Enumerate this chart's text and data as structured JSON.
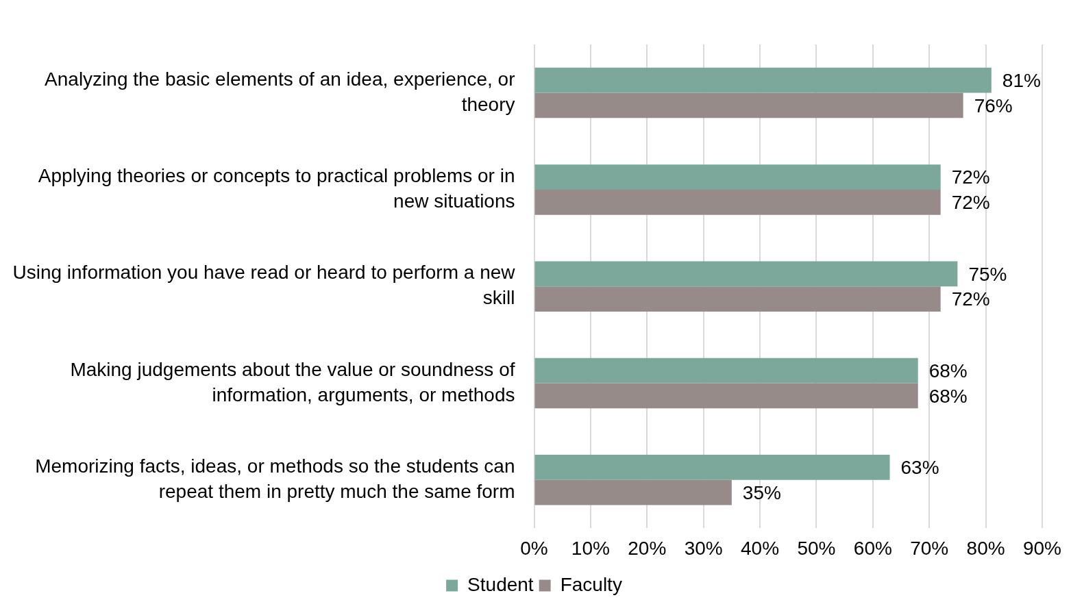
{
  "chart_data": {
    "type": "bar",
    "orientation": "horizontal",
    "categories": [
      "Analyzing the basic elements of an idea, experience, or theory",
      "Applying theories or concepts to practical problems or in new situations",
      "Using information you have read or heard to perform a new skill",
      "Making judgements about the value or soundness of information, arguments, or methods",
      "Memorizing facts, ideas, or methods so the students can repeat them in pretty much the same form"
    ],
    "series": [
      {
        "name": "Student",
        "color": "#7ba89b",
        "values": [
          81,
          72,
          75,
          68,
          63
        ],
        "value_labels": [
          "81%",
          "72%",
          "75%",
          "68%",
          "63%"
        ]
      },
      {
        "name": "Faculty",
        "color": "#978b89",
        "values": [
          76,
          72,
          72,
          68,
          35
        ],
        "value_labels": [
          "76%",
          "72%",
          "72%",
          "68%",
          "35%"
        ]
      }
    ],
    "xlim": [
      0,
      90
    ],
    "xticks": [
      {
        "value": 0,
        "label": "0%"
      },
      {
        "value": 10,
        "label": "10%"
      },
      {
        "value": 20,
        "label": "20%"
      },
      {
        "value": 30,
        "label": "30%"
      },
      {
        "value": 40,
        "label": "40%"
      },
      {
        "value": 50,
        "label": "50%"
      },
      {
        "value": 60,
        "label": "60%"
      },
      {
        "value": 70,
        "label": "70%"
      },
      {
        "value": 80,
        "label": "80%"
      },
      {
        "value": 90,
        "label": "90%"
      }
    ],
    "grid": "x",
    "legend": "bottom"
  }
}
